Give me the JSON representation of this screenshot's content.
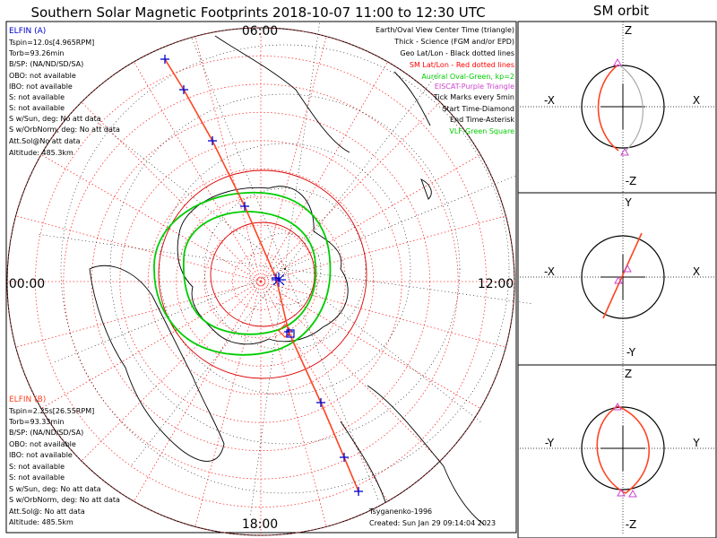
{
  "chart_data": {
    "type": "polar-map",
    "title": "Southern Solar Magnetic Footprints 2018-10-07 11:00 to 12:30 UTC",
    "side_title": "SM orbit",
    "mlt_labels": [
      "06:00",
      "12:00",
      "18:00",
      "00:00"
    ],
    "latitude_circles_deg": [
      -50,
      -60,
      -70,
      -80
    ],
    "sm_lat_rings": 9,
    "mlt_spokes_deg": 15,
    "legend": [
      {
        "text": "Earth/Oval View Center Time (triangle)",
        "color": "#000000"
      },
      {
        "text": "Thick - Science (FGM and/or EPD)",
        "color": "#000000"
      },
      {
        "text": "Geo Lat/Lon - Black dotted lines",
        "color": "#000000"
      },
      {
        "text": "SM Lat/Lon - Red dotted lines",
        "color": "#ff0000"
      },
      {
        "text": "Auroral Oval-Green, kp=2",
        "color": "#00cc00"
      },
      {
        "text": "EISCAT-Purple Triangle",
        "color": "#cc44cc"
      },
      {
        "text": "Tick Marks every 5min",
        "color": "#000000"
      },
      {
        "text": "Start Time-Diamond",
        "color": "#000000"
      },
      {
        "text": "End Time-Asterisk",
        "color": "#000000"
      },
      {
        "text": "VLF-Green Square",
        "color": "#00cc00"
      }
    ],
    "probes": [
      {
        "name": "ELFIN (A)",
        "color": "#0000cc",
        "lines": [
          "Tspin=12.0s[4.965RPM]",
          "Torb=93.26min",
          "B/SP: (NA/ND/SD/SA)",
          "OBO: not available",
          "IBO: not available",
          "S: not available",
          "S: not available",
          "S w/Sun, deg: No att data",
          "S w/OrbNorm, deg: No att data",
          "Att.Sol@No att data",
          "Altitude: 485.3km"
        ]
      },
      {
        "name": "ELFIN (B)",
        "color": "#ff4422",
        "lines": [
          "Tspin=2.25s[26.55RPM]",
          "Torb=93.33min",
          "B/SP: (NA/ND/SD/SA)",
          "OBO: not available",
          "IBO: not available",
          "S: not available",
          "S: not available",
          "S w/Sun, deg: No att data",
          "S w/OrbNorm, deg: No att data",
          "Att.Sol@: No att data",
          "Altitude: 485.5km"
        ]
      }
    ],
    "model": "Tsyganenko-1996",
    "created": "Created: Sun Jan 29 09:14:04 2023",
    "footprint_track_color": "#ff4422",
    "tick_color": "#0000cc",
    "oval_color": "#00cc00",
    "sm_panels": [
      {
        "axes": {
          "top": "Z",
          "bottom": "-Z",
          "left": "-X",
          "right": "X"
        }
      },
      {
        "axes": {
          "top": "Y",
          "bottom": "-Y",
          "left": "-X",
          "right": "X"
        }
      },
      {
        "axes": {
          "top": "Z",
          "bottom": "-Z",
          "left": "-Y",
          "right": "Y"
        }
      }
    ]
  }
}
